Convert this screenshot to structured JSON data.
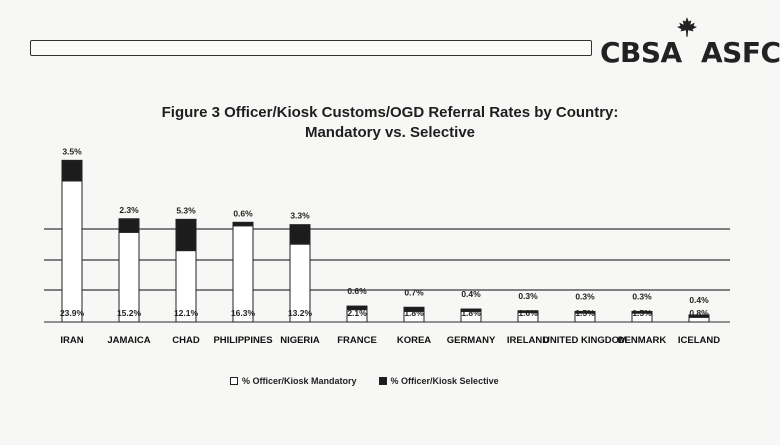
{
  "header": {
    "logo_text": "CBSA ASFC",
    "logo_left": "CBSA",
    "logo_right": "ASFC"
  },
  "chart_data": {
    "type": "bar",
    "stacked": true,
    "title": "Figure 3  Officer/Kiosk Customs/OGD Referral Rates by Country:",
    "subtitle": "Mandatory vs. Selective",
    "categories": [
      "IRAN",
      "JAMAICA",
      "CHAD",
      "PHILIPPINES",
      "NIGERIA",
      "FRANCE",
      "KOREA",
      "GERMANY",
      "IRELAND",
      "UNITED KINGDOM",
      "DENMARK",
      "ICELAND"
    ],
    "series": [
      {
        "name": "% Officer/Kiosk Mandatory",
        "values": [
          23.9,
          15.2,
          12.1,
          16.3,
          13.2,
          2.1,
          1.8,
          1.8,
          1.6,
          1.5,
          1.5,
          0.8
        ],
        "labels": [
          "23.9%",
          "15.2%",
          "12.1%",
          "16.3%",
          "13.2%",
          "2.1%",
          "1.8%",
          "1.8%",
          "1.6%",
          "1.5%",
          "1.5%",
          "0.8%"
        ],
        "color": "#ffffff"
      },
      {
        "name": "% Officer/Kiosk Selective",
        "values": [
          3.5,
          2.3,
          5.3,
          0.6,
          3.3,
          0.6,
          0.7,
          0.4,
          0.3,
          0.3,
          0.3,
          0.4
        ],
        "labels": [
          "3.5%",
          "2.3%",
          "5.3%",
          "0.6%",
          "3.3%",
          "0.6%",
          "0.7%",
          "0.4%",
          "0.3%",
          "0.3%",
          "0.3%",
          "0.4%"
        ],
        "color": "#1c1c1c"
      }
    ],
    "legend_position": "bottom",
    "grid": true
  }
}
